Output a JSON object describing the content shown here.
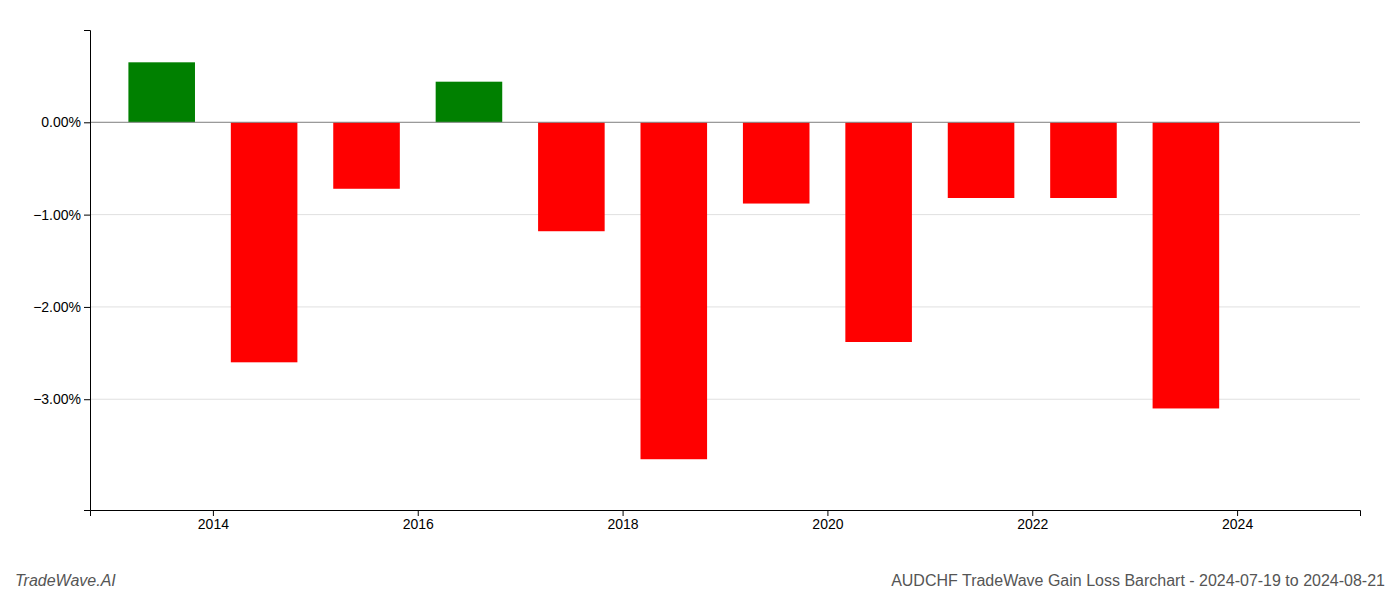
{
  "chart_data": {
    "type": "bar",
    "title": "AUDCHF TradeWave Gain Loss Barchart - 2024-07-19 to 2024-08-21",
    "annotations": [
      "TradeWave.AI"
    ],
    "x": [
      2013.5,
      2014.5,
      2015.5,
      2016.5,
      2017.5,
      2018.5,
      2019.5,
      2020.5,
      2021.5,
      2022.5,
      2023.5
    ],
    "values": [
      0.65,
      -2.6,
      -0.72,
      0.44,
      -1.18,
      -3.65,
      -0.88,
      -2.38,
      -0.82,
      -0.82,
      -3.1
    ],
    "colors": [
      "#008000",
      "#ff0000",
      "#ff0000",
      "#008000",
      "#ff0000",
      "#ff0000",
      "#ff0000",
      "#ff0000",
      "#ff0000",
      "#ff0000",
      "#ff0000"
    ],
    "xlim": [
      2012.8,
      2025.2
    ],
    "xticks": [
      2014,
      2016,
      2018,
      2020,
      2022,
      2024
    ],
    "ylim": [
      -4.2,
      1.0
    ],
    "yticks": [
      {
        "value": 0.0,
        "label": "0.00%"
      },
      {
        "value": -1.0,
        "label": "−1.00%"
      },
      {
        "value": -2.0,
        "label": "−2.00%"
      },
      {
        "value": -3.0,
        "label": "−3.00%"
      }
    ],
    "grid": true
  }
}
